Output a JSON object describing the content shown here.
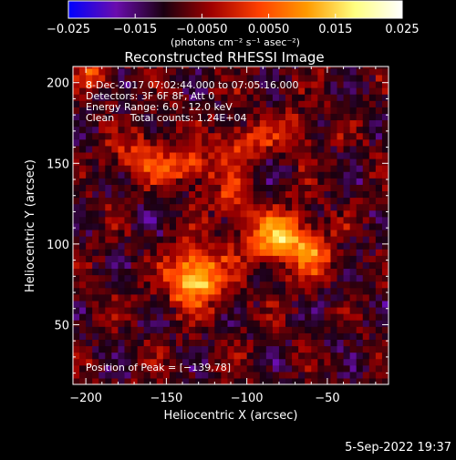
{
  "chart_data": {
    "type": "heatmap",
    "title": "Reconstructed RHESSI Image",
    "xlabel": "Heliocentric X (arcsec)",
    "ylabel": "Heliocentric Y (arcsec)",
    "xlim": [
      -208,
      -12
    ],
    "ylim": [
      13,
      210
    ],
    "x_ticks": [
      -200,
      -150,
      -100,
      -50
    ],
    "x_tick_labels": [
      "−200",
      "−150",
      "−100",
      "−50"
    ],
    "y_ticks": [
      50,
      100,
      150,
      200
    ],
    "y_tick_labels": [
      "50",
      "100",
      "150",
      "200"
    ],
    "grid": false,
    "colorbar": {
      "position": "top",
      "range": [
        -0.025,
        0.025
      ],
      "ticks": [
        -0.025,
        -0.015,
        -0.005,
        0.005,
        0.015,
        0.025
      ],
      "tick_labels": [
        "−0.025",
        "−0.015",
        "−0.0050",
        "0.0050",
        "0.015",
        "0.025"
      ],
      "units": "(photons cm⁻² s⁻¹ asec⁻²)",
      "colors": [
        "#0000ff",
        "#6a0dad",
        "#1a0010",
        "#a00000",
        "#ff4000",
        "#ff9a00",
        "#ffff80",
        "#ffffff"
      ]
    },
    "annotations": [
      "8-Dec-2017 07:02:44.000 to 07:05:16.000",
      "Detectors: 3F 6F 8F, Att 0",
      "Energy Range: 6.0 - 12.0 keV",
      "Clean     Total counts: 1.24E+04",
      "Position of Peak = [−139,78]"
    ],
    "peak": {
      "x": -139,
      "y": 78
    },
    "sources": [
      {
        "x": -132,
        "y": 80,
        "amp": 0.026,
        "sx": 12,
        "sy": 12
      },
      {
        "x": -82,
        "y": 104,
        "amp": 0.022,
        "sx": 13,
        "sy": 11
      },
      {
        "x": -60,
        "y": 95,
        "amp": 0.012,
        "sx": 10,
        "sy": 12
      },
      {
        "x": -165,
        "y": 155,
        "amp": 0.012,
        "sx": 14,
        "sy": 9
      },
      {
        "x": -135,
        "y": 148,
        "amp": 0.012,
        "sx": 12,
        "sy": 9
      },
      {
        "x": -102,
        "y": 162,
        "amp": 0.01,
        "sx": 11,
        "sy": 9
      },
      {
        "x": -70,
        "y": 170,
        "amp": 0.008,
        "sx": 12,
        "sy": 9
      },
      {
        "x": -110,
        "y": 128,
        "amp": 0.009,
        "sx": 8,
        "sy": 10
      },
      {
        "x": -195,
        "y": 205,
        "amp": 0.014,
        "sx": 6,
        "sy": 6
      }
    ],
    "background": {
      "level": -0.009,
      "amplitude": 0.008
    },
    "pixel_size_arcsec": 4
  },
  "footer": {
    "date": "5-Sep-2022 19:37"
  }
}
